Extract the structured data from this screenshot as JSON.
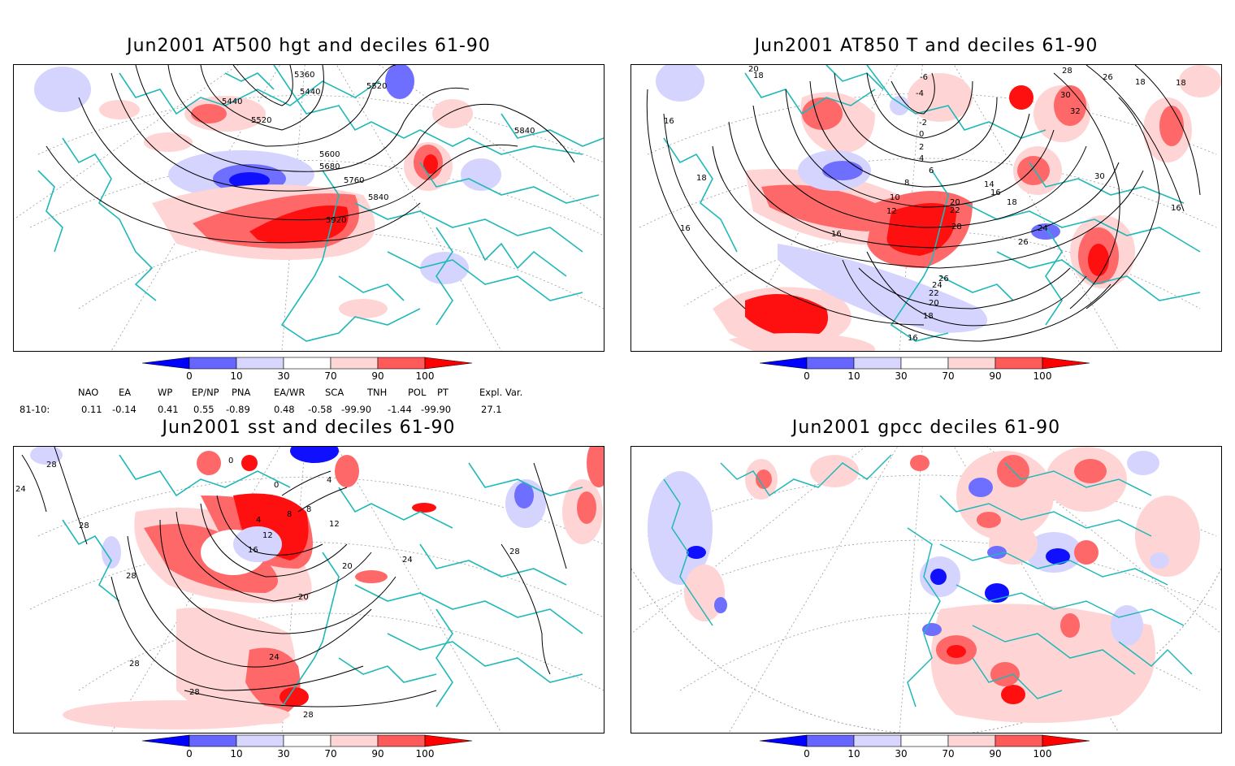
{
  "panels": [
    {
      "id": "p1",
      "title": "Jun2001 AT500 hgt and deciles 61-90",
      "contour_labels": [
        "5360",
        "5440",
        "5440",
        "5520",
        "5520",
        "5600",
        "5680",
        "5760",
        "5840",
        "5840",
        "5920"
      ]
    },
    {
      "id": "p2",
      "title": "Jun2001 AT850 T and deciles 61-90",
      "contour_labels": [
        "20",
        "18",
        "16",
        "18",
        "16",
        "-6",
        "-4",
        "-2",
        "0",
        "2",
        "4",
        "6",
        "8",
        "10",
        "12",
        "14",
        "16",
        "18",
        "20",
        "22",
        "28",
        "24",
        "26",
        "26",
        "24",
        "22",
        "20",
        "18",
        "16",
        "16",
        "18",
        "16",
        "28",
        "30",
        "26",
        "32",
        "30",
        "18"
      ]
    },
    {
      "id": "p3",
      "title": "Jun2001 sst and deciles 61-90",
      "contour_labels": [
        "24",
        "28",
        "28",
        "28",
        "0",
        "4",
        "8",
        "12",
        "16",
        "20",
        "24",
        "28",
        "28",
        "28",
        "28",
        "20",
        "24",
        "8",
        "12",
        "4",
        "0"
      ]
    },
    {
      "id": "p4",
      "title": "Jun2001 gpcc deciles 61-90",
      "contour_labels": []
    }
  ],
  "colorbar": {
    "ticks": [
      "0",
      "10",
      "30",
      "70",
      "90",
      "100"
    ],
    "colors": [
      "#0000ff",
      "#6666ff",
      "#d6d6ff",
      "#ffffff",
      "#ffd6d6",
      "#ff5a5a",
      "#ff0000"
    ]
  },
  "indices": {
    "names": [
      "NAO",
      "EA",
      "WP",
      "EP/NP",
      "PNA",
      "EA/WR",
      "SCA",
      "TNH",
      "POL",
      "PT",
      "Expl. Var."
    ],
    "row_label": "81-10:",
    "values": [
      "0.11",
      "-0.14",
      "0.41",
      "0.55",
      "-0.89",
      "0.48",
      "-0.58",
      "-99.90",
      "-1.44",
      "-99.90",
      "27.1"
    ]
  },
  "colors": {
    "coast": "#20b8b8",
    "contour": "#000000",
    "grid": "#9a9a9a",
    "strong_pos": "#ff1010",
    "mid_pos": "#ff6868",
    "weak_pos": "#ffd4d4",
    "weak_neg": "#d4d4ff",
    "mid_neg": "#6e6eff",
    "strong_neg": "#1010ff"
  }
}
